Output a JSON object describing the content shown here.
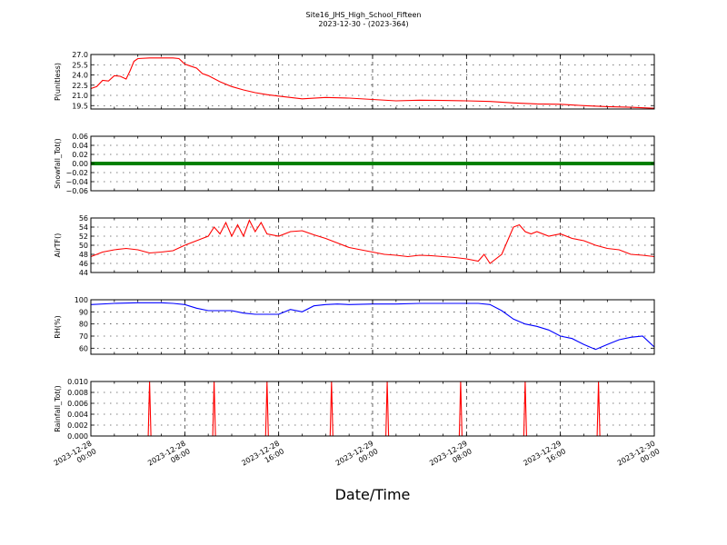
{
  "chart_data": {
    "type": "line",
    "title": "Site16_JHS_High_School_Fifteen",
    "subtitle": "2023-12-30 - (2023-364)",
    "xlabel": "Date/Time",
    "x_range": [
      "2023-12-28 00:00",
      "2023-12-30 00:00"
    ],
    "x_ticks": [
      {
        "value": "2023-12-28 00:00",
        "label_date": "2023-12-28",
        "label_time": "00:00"
      },
      {
        "value": "2023-12-28 08:00",
        "label_date": "2023-12-28",
        "label_time": "08:00"
      },
      {
        "value": "2023-12-28 16:00",
        "label_date": "2023-12-28",
        "label_time": "16:00"
      },
      {
        "value": "2023-12-29 00:00",
        "label_date": "2023-12-29",
        "label_time": "00:00"
      },
      {
        "value": "2023-12-29 08:00",
        "label_date": "2023-12-29",
        "label_time": "08:00"
      },
      {
        "value": "2023-12-29 16:00",
        "label_date": "2023-12-29",
        "label_time": "16:00"
      },
      {
        "value": "2023-12-30 00:00",
        "label_date": "2023-12-30",
        "label_time": "00:00"
      }
    ],
    "grid": true,
    "panels": [
      {
        "ylabel": "P(unitless)",
        "color": "#ff0000",
        "ylim": [
          19.0,
          27.0
        ],
        "yticks": [
          "19.5",
          "21.0",
          "22.5",
          "24.0",
          "25.5",
          "27.0"
        ],
        "series": {
          "x": [
            "2023-12-28 00:00",
            "2023-12-28 00:30",
            "2023-12-28 01:00",
            "2023-12-28 01:30",
            "2023-12-28 02:00",
            "2023-12-28 02:30",
            "2023-12-28 03:00",
            "2023-12-28 03:20",
            "2023-12-28 03:40",
            "2023-12-28 04:00",
            "2023-12-28 05:00",
            "2023-12-28 06:00",
            "2023-12-28 07:00",
            "2023-12-28 07:30",
            "2023-12-28 08:00",
            "2023-12-28 08:30",
            "2023-12-28 09:00",
            "2023-12-28 09:30",
            "2023-12-28 10:00",
            "2023-12-28 11:00",
            "2023-12-28 12:00",
            "2023-12-28 13:00",
            "2023-12-28 14:00",
            "2023-12-28 15:00",
            "2023-12-28 16:00",
            "2023-12-28 18:00",
            "2023-12-28 20:00",
            "2023-12-28 22:00",
            "2023-12-29 00:00",
            "2023-12-29 02:00",
            "2023-12-29 04:00",
            "2023-12-29 06:00",
            "2023-12-29 08:00",
            "2023-12-29 10:00",
            "2023-12-29 12:00",
            "2023-12-29 14:00",
            "2023-12-29 16:00",
            "2023-12-29 18:00",
            "2023-12-29 20:00",
            "2023-12-29 22:00",
            "2023-12-30 00:00"
          ],
          "y": [
            22.0,
            22.3,
            23.2,
            23.1,
            23.9,
            23.8,
            23.4,
            24.6,
            26.0,
            26.4,
            26.5,
            26.5,
            26.5,
            26.4,
            25.6,
            25.3,
            25.0,
            24.2,
            23.9,
            23.0,
            22.3,
            21.8,
            21.4,
            21.1,
            20.9,
            20.5,
            20.7,
            20.6,
            20.4,
            20.2,
            20.3,
            20.25,
            20.2,
            20.1,
            19.9,
            19.75,
            19.7,
            19.5,
            19.35,
            19.25,
            19.1
          ]
        }
      },
      {
        "ylabel": "Snowfall_Tot()",
        "color": "#008000",
        "ylim": [
          -0.06,
          0.06
        ],
        "yticks": [
          "−0.06",
          "−0.04",
          "−0.02",
          "0.00",
          "0.02",
          "0.04",
          "0.06"
        ],
        "series": {
          "x": [
            "2023-12-28 00:00",
            "2023-12-30 00:00"
          ],
          "y": [
            0.0,
            0.0
          ]
        }
      },
      {
        "ylabel": "AirTF()",
        "color": "#ff0000",
        "ylim": [
          44,
          56
        ],
        "yticks": [
          "44",
          "46",
          "48",
          "50",
          "52",
          "54",
          "56"
        ],
        "series": {
          "x": [
            "2023-12-28 00:00",
            "2023-12-28 00:30",
            "2023-12-28 01:00",
            "2023-12-28 02:00",
            "2023-12-28 03:00",
            "2023-12-28 04:00",
            "2023-12-28 05:00",
            "2023-12-28 06:00",
            "2023-12-28 07:00",
            "2023-12-28 08:00",
            "2023-12-28 08:30",
            "2023-12-28 09:00",
            "2023-12-28 09:30",
            "2023-12-28 10:00",
            "2023-12-28 10:30",
            "2023-12-28 11:00",
            "2023-12-28 11:30",
            "2023-12-28 12:00",
            "2023-12-28 12:30",
            "2023-12-28 13:00",
            "2023-12-28 13:30",
            "2023-12-28 14:00",
            "2023-12-28 14:30",
            "2023-12-28 15:00",
            "2023-12-28 16:00",
            "2023-12-28 17:00",
            "2023-12-28 18:00",
            "2023-12-28 19:00",
            "2023-12-28 20:00",
            "2023-12-28 21:00",
            "2023-12-28 22:00",
            "2023-12-28 23:00",
            "2023-12-29 00:00",
            "2023-12-29 01:00",
            "2023-12-29 02:00",
            "2023-12-29 03:00",
            "2023-12-29 04:00",
            "2023-12-29 05:00",
            "2023-12-29 06:00",
            "2023-12-29 07:00",
            "2023-12-29 08:00",
            "2023-12-29 09:00",
            "2023-12-29 09:30",
            "2023-12-29 10:00",
            "2023-12-29 11:00",
            "2023-12-29 12:00",
            "2023-12-29 12:30",
            "2023-12-29 13:00",
            "2023-12-29 13:30",
            "2023-12-29 14:00",
            "2023-12-29 15:00",
            "2023-12-29 16:00",
            "2023-12-29 17:00",
            "2023-12-29 18:00",
            "2023-12-29 19:00",
            "2023-12-29 20:00",
            "2023-12-29 21:00",
            "2023-12-29 22:00",
            "2023-12-29 23:00",
            "2023-12-30 00:00"
          ],
          "y": [
            47.5,
            48.0,
            48.5,
            49.0,
            49.3,
            49.0,
            48.3,
            48.5,
            48.8,
            50.0,
            50.5,
            51.0,
            51.5,
            52.0,
            54.0,
            52.5,
            55.0,
            52.0,
            54.5,
            52.0,
            55.5,
            53.0,
            55.0,
            52.5,
            52.0,
            53.0,
            53.2,
            52.3,
            51.5,
            50.5,
            49.5,
            49.0,
            48.5,
            48.0,
            47.8,
            47.5,
            47.8,
            47.7,
            47.5,
            47.3,
            47.0,
            46.5,
            48.0,
            46.0,
            48.0,
            54.0,
            54.5,
            53.0,
            52.5,
            53.0,
            52.0,
            52.5,
            51.5,
            51.0,
            50.0,
            49.3,
            49.0,
            48.0,
            47.8,
            47.5
          ]
        }
      },
      {
        "ylabel": "RH(%)",
        "color": "#0000ff",
        "ylim": [
          55,
          100
        ],
        "yticks": [
          "60",
          "70",
          "80",
          "90",
          "100"
        ],
        "series": {
          "x": [
            "2023-12-28 00:00",
            "2023-12-28 02:00",
            "2023-12-28 04:00",
            "2023-12-28 06:00",
            "2023-12-28 07:00",
            "2023-12-28 08:00",
            "2023-12-28 09:00",
            "2023-12-28 10:00",
            "2023-12-28 11:00",
            "2023-12-28 12:00",
            "2023-12-28 13:00",
            "2023-12-28 14:00",
            "2023-12-28 15:00",
            "2023-12-28 16:00",
            "2023-12-28 17:00",
            "2023-12-28 18:00",
            "2023-12-28 19:00",
            "2023-12-28 20:00",
            "2023-12-28 21:00",
            "2023-12-28 22:00",
            "2023-12-29 00:00",
            "2023-12-29 02:00",
            "2023-12-29 04:00",
            "2023-12-29 06:00",
            "2023-12-29 08:00",
            "2023-12-29 09:00",
            "2023-12-29 10:00",
            "2023-12-29 11:00",
            "2023-12-29 12:00",
            "2023-12-29 13:00",
            "2023-12-29 14:00",
            "2023-12-29 15:00",
            "2023-12-29 16:00",
            "2023-12-29 17:00",
            "2023-12-29 18:00",
            "2023-12-29 19:00",
            "2023-12-29 20:00",
            "2023-12-29 21:00",
            "2023-12-29 22:00",
            "2023-12-29 23:00",
            "2023-12-30 00:00"
          ],
          "y": [
            96,
            97,
            97.5,
            97.5,
            97,
            96,
            93,
            91,
            91,
            91,
            89,
            88,
            88,
            88,
            92,
            90,
            95,
            96,
            96.5,
            96,
            96.5,
            96.5,
            97,
            97,
            97,
            97,
            96,
            91,
            84,
            80,
            78,
            75,
            70,
            68,
            63,
            59,
            63,
            67,
            69,
            70,
            61
          ]
        }
      },
      {
        "ylabel": "Rainfall_Tot()",
        "color": "#ff0000",
        "ylim": [
          0,
          0.01
        ],
        "yticks": [
          "0.000",
          "0.002",
          "0.004",
          "0.006",
          "0.008",
          "0.010"
        ],
        "series": {
          "x": [
            "2023-12-28 05:00",
            "2023-12-28 10:30",
            "2023-12-28 15:00",
            "2023-12-28 20:30",
            "2023-12-29 01:15",
            "2023-12-29 07:30",
            "2023-12-29 13:00",
            "2023-12-29 19:15"
          ],
          "y": [
            0.01,
            0.01,
            0.01,
            0.01,
            0.01,
            0.01,
            0.01,
            0.01
          ]
        }
      }
    ]
  }
}
